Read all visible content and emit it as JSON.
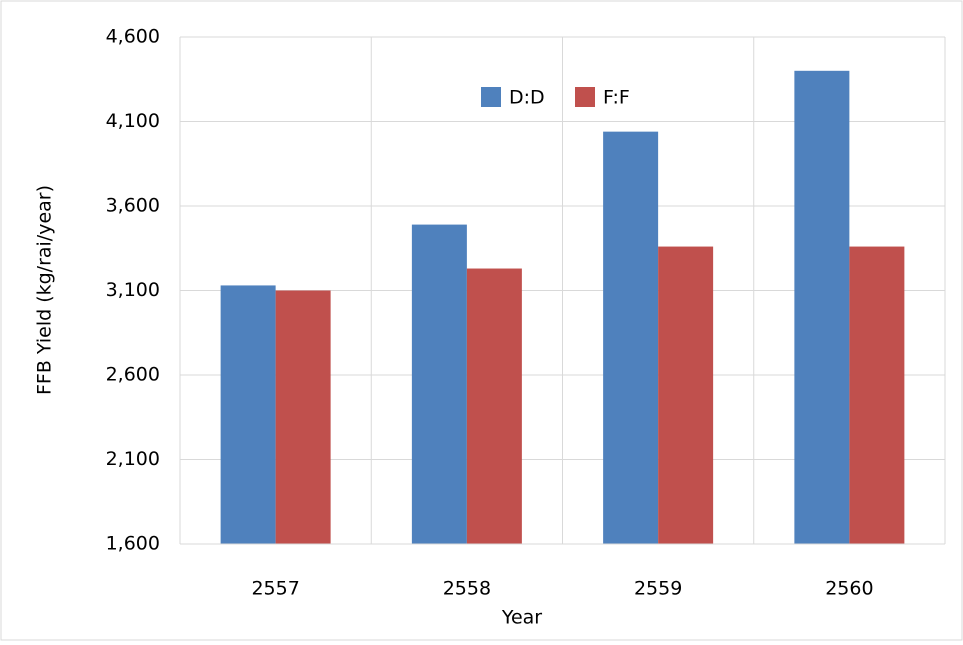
{
  "chart_data": {
    "type": "bar",
    "x_label": "Year",
    "y_label": "FFB Yield (kg/rai/year)",
    "categories": [
      "2557",
      "2558",
      "2559",
      "2560"
    ],
    "series": [
      {
        "name": "D:D",
        "color": "#4f81bd",
        "values": [
          3130,
          3490,
          4040,
          4400
        ]
      },
      {
        "name": "F:F",
        "color": "#c0504d",
        "values": [
          3100,
          3230,
          3360,
          3360
        ]
      }
    ],
    "ylim": [
      1600,
      4600
    ],
    "yticks": [
      {
        "value": 1600,
        "label": "1,600"
      },
      {
        "value": 2100,
        "label": "2,100"
      },
      {
        "value": 2600,
        "label": "2,600"
      },
      {
        "value": 3100,
        "label": "3,100"
      },
      {
        "value": 3600,
        "label": "3,600"
      },
      {
        "value": 4100,
        "label": "4,100"
      },
      {
        "value": 4600,
        "label": "4,600"
      }
    ],
    "grid": true,
    "legend": "top"
  }
}
